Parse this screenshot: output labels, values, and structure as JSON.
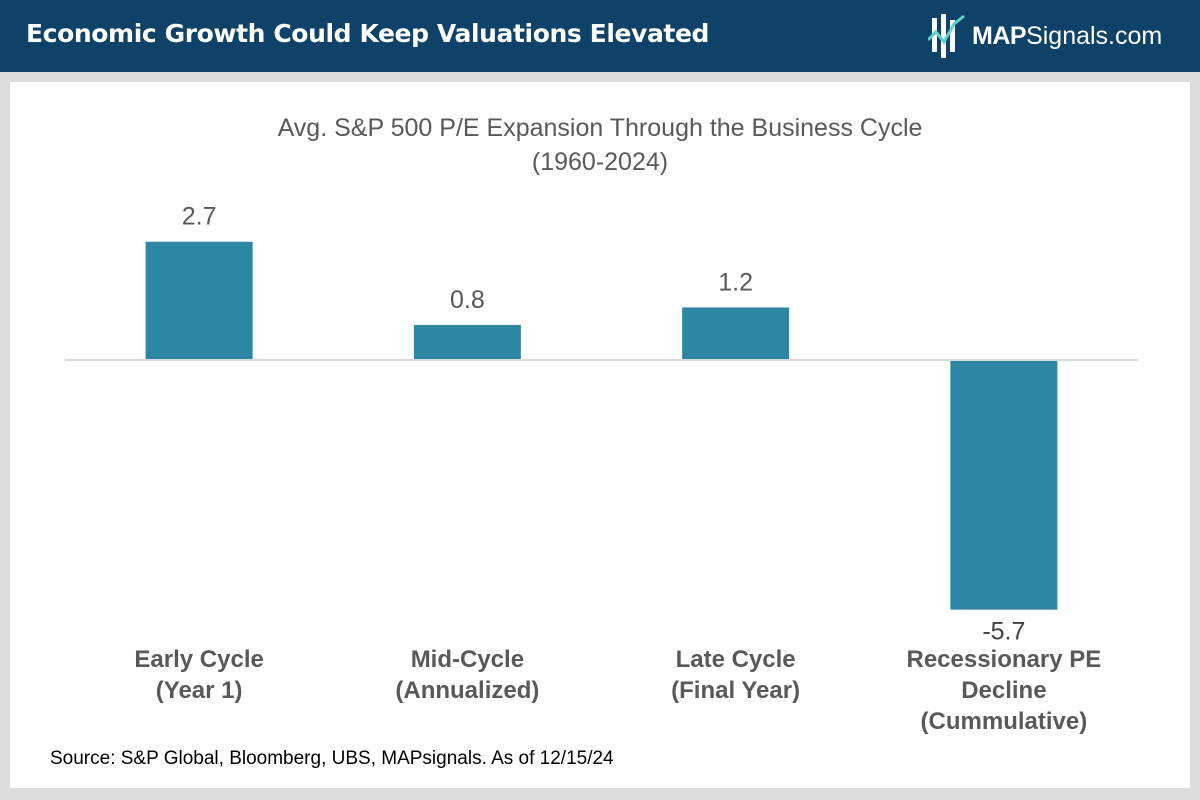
{
  "header": {
    "title": "Economic Growth Could Keep Valuations Elevated",
    "logo_bold": "MAP",
    "logo_rest": "Signals.com"
  },
  "colors": {
    "header_bg": "#0f4268",
    "bar": "#2e86a5",
    "axis": "#d9d9d9",
    "text": "#595959"
  },
  "chart_data": {
    "type": "bar",
    "title": "Avg. S&P 500 P/E Expansion Through the Business Cycle",
    "subtitle": "(1960-2024)",
    "categories": [
      [
        "Early Cycle",
        "(Year 1)"
      ],
      [
        "Mid-Cycle",
        "(Annualized)"
      ],
      [
        "Late Cycle",
        "(Final Year)"
      ],
      [
        "Recessionary PE",
        "Decline",
        "(Cummulative)"
      ]
    ],
    "values": [
      2.7,
      0.8,
      1.2,
      -5.7
    ],
    "value_labels": [
      "2.7",
      "0.8",
      "1.2",
      "-5.7"
    ],
    "ylim": [
      -5.7,
      2.7
    ],
    "xlabel": "",
    "ylabel": "",
    "grid": false,
    "legend": "none"
  },
  "source": "Source: S&P Global, Bloomberg, UBS, MAPsignals. As of 12/15/24"
}
